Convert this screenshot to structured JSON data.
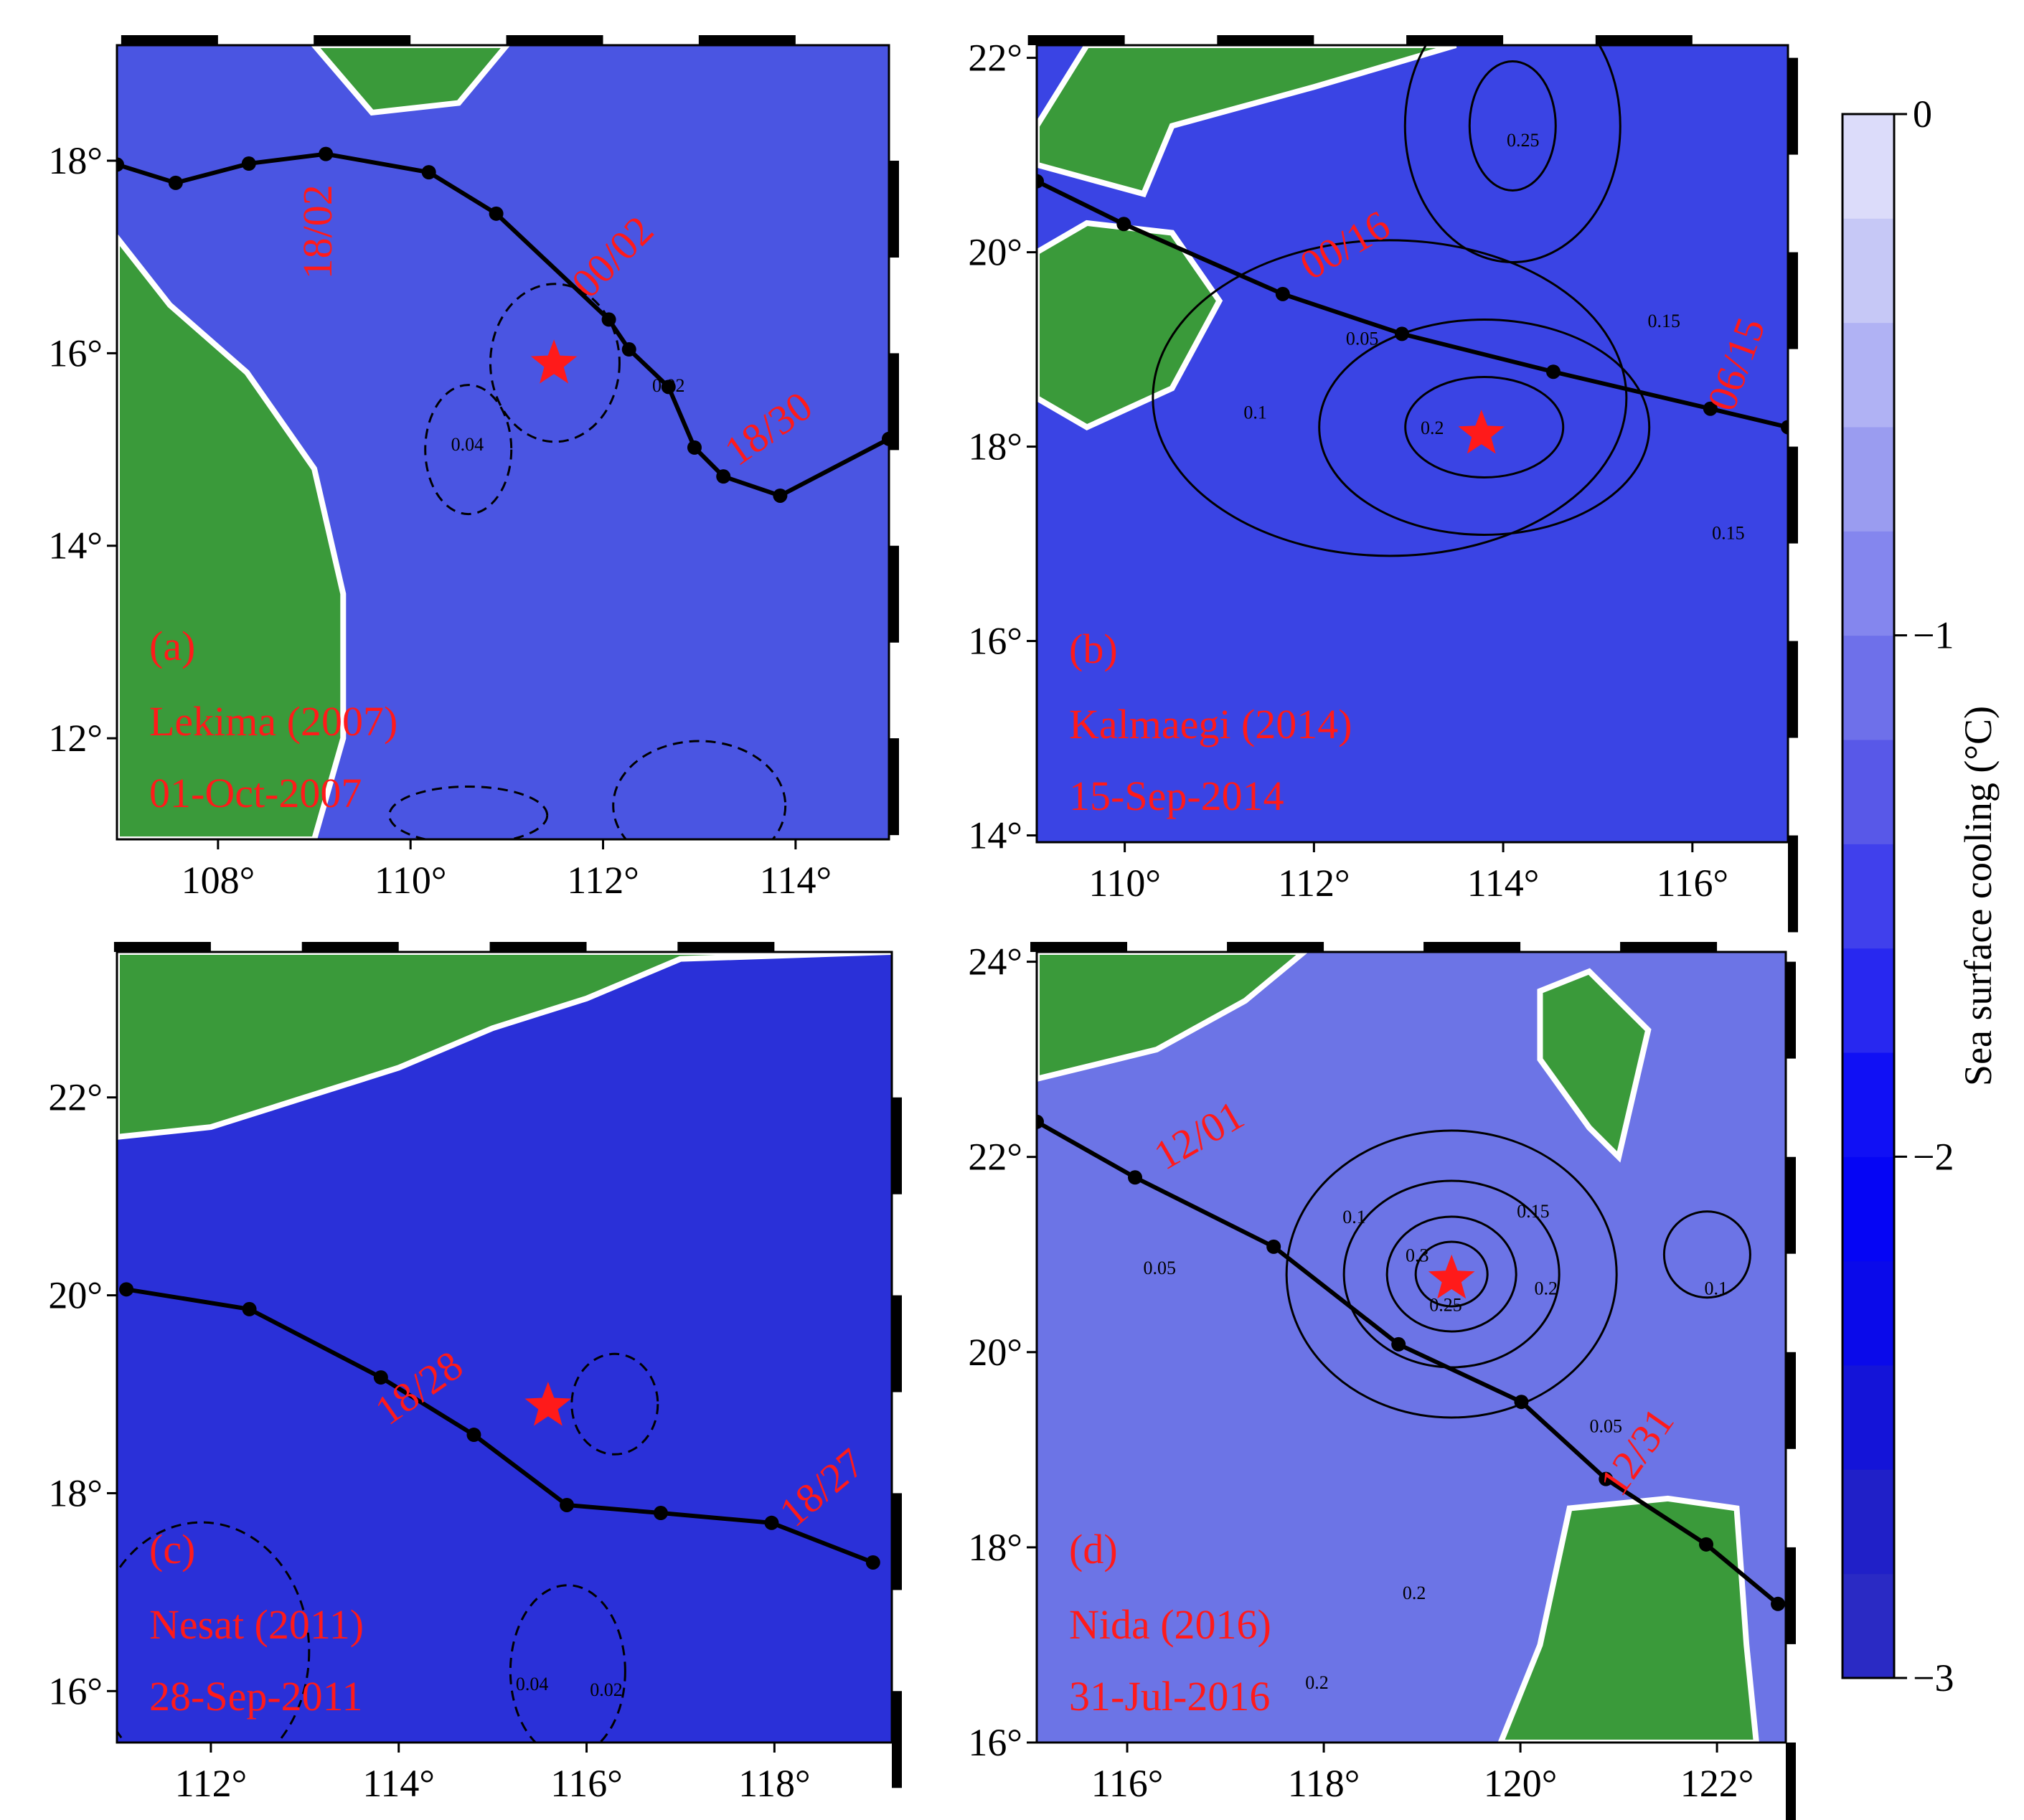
{
  "panels": [
    {
      "label": "(a)",
      "name": "Lekima (2007)",
      "date": "01-Oct-2007",
      "xlim": [
        106.95,
        114.97
      ],
      "ylim": [
        10.95,
        19.2
      ],
      "xticks": [
        {
          "value": 108,
          "label": "108°"
        },
        {
          "value": 110,
          "label": "110°"
        },
        {
          "value": 112,
          "label": "112°"
        },
        {
          "value": 114,
          "label": "114°"
        }
      ],
      "yticks": [
        {
          "value": 12,
          "label": "12°"
        },
        {
          "value": 14,
          "label": "14°"
        },
        {
          "value": 16,
          "label": "16°"
        },
        {
          "value": 18,
          "label": "18°"
        }
      ],
      "track": {
        "lon": [
          106.95,
          107.56,
          108.32,
          109.12,
          110.19,
          110.89,
          112.06,
          112.27,
          112.68,
          112.95,
          113.25,
          113.84,
          114.97
        ],
        "lat": [
          17.96,
          17.77,
          17.97,
          18.07,
          17.88,
          17.45,
          16.35,
          16.04,
          15.65,
          15.02,
          14.72,
          14.52,
          15.11
        ]
      },
      "time_labels": [
        {
          "text": "18/02",
          "lon": 109.18,
          "lat": 17.26
        },
        {
          "text": "00/02",
          "lon": 112.2,
          "lat": 16.9
        },
        {
          "text": "18/30",
          "lon": 113.8,
          "lat": 15.1
        }
      ],
      "star": {
        "lon": 111.49,
        "lat": 15.89
      },
      "contour_labels": [
        {
          "text": "0.04",
          "lon": 110.59,
          "lat": 14.99
        },
        {
          "text": "0.02",
          "lon": 112.68,
          "lat": 15.6
        }
      ]
    },
    {
      "label": "(b)",
      "name": "Kalmaegi (2014)",
      "date": "15-Sep-2014",
      "xlim": [
        109.07,
        117.01
      ],
      "ylim": [
        13.93,
        22.13
      ],
      "xticks": [
        {
          "value": 110,
          "label": "110°"
        },
        {
          "value": 112,
          "label": "112°"
        },
        {
          "value": 114,
          "label": "114°"
        },
        {
          "value": 116,
          "label": "116°"
        }
      ],
      "yticks": [
        {
          "value": 14,
          "label": "14°"
        },
        {
          "value": 16,
          "label": "16°"
        },
        {
          "value": 18,
          "label": "18°"
        },
        {
          "value": 20,
          "label": "20°"
        },
        {
          "value": 22,
          "label": "22°"
        }
      ],
      "track": {
        "lon": [
          109.07,
          109.99,
          111.67,
          112.93,
          114.53,
          116.19,
          117.01
        ],
        "lat": [
          20.73,
          20.29,
          19.57,
          19.16,
          18.77,
          18.39,
          18.2
        ]
      },
      "time_labels": [
        {
          "text": "00/16",
          "lon": 112.4,
          "lat": 19.95
        },
        {
          "text": "06/15",
          "lon": 116.6,
          "lat": 18.8
        }
      ],
      "star": {
        "lon": 113.77,
        "lat": 18.13
      },
      "contour_labels": [
        {
          "text": "0.25",
          "lon": 114.21,
          "lat": 21.09
        },
        {
          "text": "0.05",
          "lon": 112.51,
          "lat": 19.05
        },
        {
          "text": "0.1",
          "lon": 111.38,
          "lat": 18.29
        },
        {
          "text": "0.2",
          "lon": 113.25,
          "lat": 18.13
        },
        {
          "text": "0.15",
          "lon": 115.7,
          "lat": 19.23
        },
        {
          "text": "0.15",
          "lon": 116.38,
          "lat": 17.05
        }
      ]
    },
    {
      "label": "(c)",
      "name": "Nesat (2011)",
      "date": "28-Sep-2011",
      "xlim": [
        111.0,
        119.25
      ],
      "ylim": [
        15.48,
        23.47
      ],
      "xticks": [
        {
          "value": 112,
          "label": "112°"
        },
        {
          "value": 114,
          "label": "114°"
        },
        {
          "value": 116,
          "label": "116°"
        },
        {
          "value": 118,
          "label": "118°"
        }
      ],
      "yticks": [
        {
          "value": 16,
          "label": "16°"
        },
        {
          "value": 18,
          "label": "18°"
        },
        {
          "value": 20,
          "label": "20°"
        },
        {
          "value": 22,
          "label": "22°"
        }
      ],
      "track": {
        "lon": [
          111.1,
          112.41,
          113.81,
          114.8,
          115.79,
          116.79,
          117.97,
          119.05
        ],
        "lat": [
          20.06,
          19.86,
          19.17,
          18.59,
          17.88,
          17.8,
          17.7,
          17.3
        ]
      },
      "time_labels": [
        {
          "text": "18/28",
          "lon": 114.3,
          "lat": 18.95
        },
        {
          "text": "18/27",
          "lon": 118.6,
          "lat": 17.95
        }
      ],
      "star": {
        "lon": 115.59,
        "lat": 18.88
      },
      "contour_labels": [
        {
          "text": "0.04",
          "lon": 115.42,
          "lat": 16.01
        },
        {
          "text": "0.02",
          "lon": 116.21,
          "lat": 15.95
        }
      ]
    },
    {
      "label": "(d)",
      "name": "Nida (2016)",
      "date": "31-Jul-2016",
      "xlim": [
        115.08,
        122.7
      ],
      "ylim": [
        16.0,
        24.1
      ],
      "xticks": [
        {
          "value": 116,
          "label": "116°"
        },
        {
          "value": 118,
          "label": "118°"
        },
        {
          "value": 120,
          "label": "120°"
        },
        {
          "value": 122,
          "label": "122°"
        }
      ],
      "yticks": [
        {
          "value": 16,
          "label": "16°"
        },
        {
          "value": 18,
          "label": "18°"
        },
        {
          "value": 20,
          "label": "20°"
        },
        {
          "value": 22,
          "label": "22°"
        },
        {
          "value": 24,
          "label": "24°"
        }
      ],
      "track": {
        "lon": [
          115.08,
          116.08,
          117.49,
          118.76,
          120.01,
          120.87,
          121.89,
          122.62
        ],
        "lat": [
          22.36,
          21.79,
          21.08,
          20.08,
          19.49,
          18.7,
          18.03,
          17.42
        ]
      },
      "time_labels": [
        {
          "text": "12/01",
          "lon": 116.8,
          "lat": 22.1
        },
        {
          "text": "12/31",
          "lon": 121.3,
          "lat": 18.9
        }
      ],
      "star": {
        "lon": 119.3,
        "lat": 20.75
      },
      "contour_labels": [
        {
          "text": "0.05",
          "lon": 116.33,
          "lat": 20.8
        },
        {
          "text": "0.1",
          "lon": 118.31,
          "lat": 21.32
        },
        {
          "text": "0.15",
          "lon": 120.13,
          "lat": 21.38
        },
        {
          "text": "0.2",
          "lon": 120.26,
          "lat": 20.59
        },
        {
          "text": "0.3",
          "lon": 118.95,
          "lat": 20.93
        },
        {
          "text": "0.25",
          "lon": 119.24,
          "lat": 20.42
        },
        {
          "text": "0.1",
          "lon": 121.99,
          "lat": 20.59
        },
        {
          "text": "0.05",
          "lon": 120.87,
          "lat": 19.18
        },
        {
          "text": "0.2",
          "lon": 118.92,
          "lat": 17.47
        },
        {
          "text": "0.2",
          "lon": 117.93,
          "lat": 16.55
        }
      ]
    }
  ],
  "colorbar": {
    "label": "Sea surface cooling (°C)",
    "lim": [
      -3,
      0
    ],
    "ticks": [
      {
        "value": 0,
        "label": "0"
      },
      {
        "value": -1,
        "label": "−1"
      },
      {
        "value": -2,
        "label": "−2"
      },
      {
        "value": -3,
        "label": "−3"
      }
    ],
    "colors": [
      "#2a2ac4",
      "#2020c8",
      "#1414d8",
      "#0a0aea",
      "#0505f5",
      "#1010f5",
      "#2828f0",
      "#4040ec",
      "#5858e8",
      "#6e70ea",
      "#8486ee",
      "#9a9cf0",
      "#b0b2f4",
      "#c6c8f6",
      "#dcdcfa"
    ]
  }
}
